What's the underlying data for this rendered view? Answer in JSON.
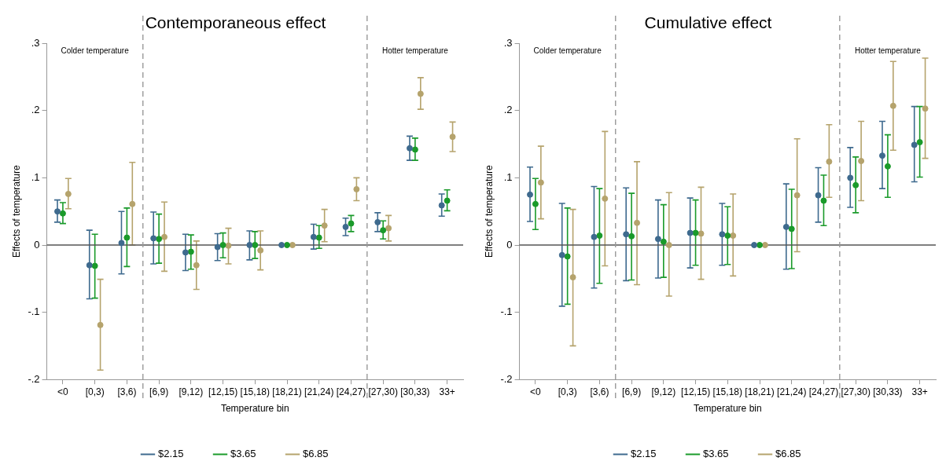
{
  "chart_data": [
    {
      "type": "scatter",
      "title": "Contemporaneous effect",
      "xlabel": "Temperature bin",
      "ylabel": "Effects of temperature",
      "categories": [
        "<0",
        "[0,3)",
        "[3,6)",
        "[6,9)",
        "[9,12)",
        "[12,15)",
        "[15,18)",
        "[18,21)",
        "[21,24)",
        "[24,27)",
        "[27,30)",
        "[30,33)",
        "33+"
      ],
      "series": [
        {
          "name": "$2.15",
          "color": "#3e6a8e",
          "values": [
            0.05,
            -0.03,
            0.003,
            0.01,
            -0.011,
            -0.003,
            0,
            0,
            0.012,
            0.027,
            0.034,
            0.144,
            0.059
          ],
          "errors": [
            [
              0.034,
              0.067
            ],
            [
              -0.08,
              0.022
            ],
            [
              -0.043,
              0.05
            ],
            [
              -0.028,
              0.049
            ],
            [
              -0.038,
              0.016
            ],
            [
              -0.023,
              0.017
            ],
            [
              -0.022,
              0.021
            ],
            null,
            [
              -0.006,
              0.031
            ],
            [
              0.014,
              0.04
            ],
            [
              0.02,
              0.048
            ],
            [
              0.126,
              0.162
            ],
            [
              0.043,
              0.076
            ]
          ]
        },
        {
          "name": "$3.65",
          "color": "#1a9a2a",
          "values": [
            0.047,
            -0.031,
            0.011,
            0.009,
            -0.01,
            0,
            0,
            0,
            0.011,
            0.032,
            0.022,
            0.142,
            0.066
          ],
          "errors": [
            [
              0.032,
              0.063
            ],
            [
              -0.079,
              0.016
            ],
            [
              -0.032,
              0.055
            ],
            [
              -0.027,
              0.046
            ],
            [
              -0.036,
              0.015
            ],
            [
              -0.019,
              0.018
            ],
            [
              -0.02,
              0.02
            ],
            null,
            [
              -0.005,
              0.029
            ],
            [
              0.02,
              0.044
            ],
            [
              0.009,
              0.036
            ],
            [
              0.126,
              0.159
            ],
            [
              0.051,
              0.082
            ]
          ]
        },
        {
          "name": "$6.85",
          "color": "#b5a36c",
          "values": [
            0.076,
            -0.119,
            0.061,
            0.012,
            -0.03,
            -0.001,
            -0.008,
            0,
            0.029,
            0.083,
            0.025,
            0.225,
            0.161
          ],
          "errors": [
            [
              0.054,
              0.099
            ],
            [
              -0.186,
              -0.051
            ],
            [
              0,
              0.123
            ],
            [
              -0.039,
              0.064
            ],
            [
              -0.066,
              0.006
            ],
            [
              -0.028,
              0.025
            ],
            [
              -0.037,
              0.021
            ],
            null,
            [
              0.005,
              0.053
            ],
            [
              0.066,
              0.1
            ],
            [
              0.006,
              0.044
            ],
            [
              0.202,
              0.249
            ],
            [
              0.139,
              0.183
            ]
          ]
        }
      ],
      "ylim": [
        -0.2,
        0.3
      ],
      "yticks": [
        {
          "value": -0.2,
          "label": "-.2"
        },
        {
          "value": -0.1,
          "label": "-.1"
        },
        0,
        {
          "value": 0.1,
          "label": ".1"
        },
        {
          "value": 0.2,
          "label": ".2"
        },
        {
          "value": 0.3,
          "label": ".3"
        }
      ],
      "ref_lines": [
        {
          "axis": "y",
          "value": 0,
          "color": "#555555",
          "line_style": "solid"
        }
      ],
      "annotations": [
        "Colder temperature",
        "Hotter temperature"
      ],
      "marker": "circle",
      "grid": false,
      "legend": "bottom"
    },
    {
      "type": "scatter",
      "title": "Cumulative effect",
      "xlabel": "Temperature bin",
      "ylabel": "Effects of temperature",
      "categories": [
        "<0",
        "[0,3)",
        "[3,6)",
        "[6,9)",
        "[9,12)",
        "[12,15)",
        "[15,18)",
        "[18,21)",
        "[21,24)",
        "[24,27)",
        "[27,30)",
        "[30,33)",
        "33+"
      ],
      "series": [
        {
          "name": "$2.15",
          "color": "#3e6a8e",
          "values": [
            0.075,
            -0.015,
            0.012,
            0.016,
            0.009,
            0.018,
            0.016,
            0,
            0.027,
            0.074,
            0.1,
            0.133,
            0.149
          ],
          "errors": [
            [
              0.035,
              0.116
            ],
            [
              -0.091,
              0.062
            ],
            [
              -0.064,
              0.087
            ],
            [
              -0.053,
              0.085
            ],
            [
              -0.049,
              0.067
            ],
            [
              -0.034,
              0.07
            ],
            [
              -0.03,
              0.062
            ],
            null,
            [
              -0.036,
              0.091
            ],
            [
              0.034,
              0.115
            ],
            [
              0.056,
              0.145
            ],
            [
              0.084,
              0.184
            ],
            [
              0.094,
              0.206
            ]
          ]
        },
        {
          "name": "$3.65",
          "color": "#1a9a2a",
          "values": [
            0.061,
            -0.017,
            0.014,
            0.013,
            0.005,
            0.018,
            0.014,
            0,
            0.024,
            0.066,
            0.089,
            0.117,
            0.153
          ],
          "errors": [
            [
              0.023,
              0.099
            ],
            [
              -0.088,
              0.055
            ],
            [
              -0.057,
              0.084
            ],
            [
              -0.052,
              0.077
            ],
            [
              -0.048,
              0.06
            ],
            [
              -0.03,
              0.067
            ],
            [
              -0.029,
              0.057
            ],
            null,
            [
              -0.035,
              0.083
            ],
            [
              0.029,
              0.104
            ],
            [
              0.048,
              0.131
            ],
            [
              0.071,
              0.164
            ],
            [
              0.101,
              0.206
            ]
          ]
        },
        {
          "name": "$6.85",
          "color": "#b5a36c",
          "values": [
            0.093,
            -0.048,
            0.069,
            0.033,
            0,
            0.017,
            0.014,
            0,
            0.074,
            0.124,
            0.125,
            0.207,
            0.203
          ],
          "errors": [
            [
              0.039,
              0.147
            ],
            [
              -0.15,
              0.053
            ],
            [
              -0.031,
              0.169
            ],
            [
              -0.059,
              0.124
            ],
            [
              -0.076,
              0.078
            ],
            [
              -0.051,
              0.086
            ],
            [
              -0.046,
              0.076
            ],
            null,
            [
              -0.01,
              0.158
            ],
            [
              0.071,
              0.179
            ],
            [
              0.066,
              0.184
            ],
            [
              0.141,
              0.273
            ],
            [
              0.129,
              0.278
            ]
          ]
        }
      ],
      "ylim": [
        -0.2,
        0.3
      ],
      "yticks": [
        {
          "value": -0.2,
          "label": "-.2"
        },
        {
          "value": -0.1,
          "label": "-.1"
        },
        0,
        {
          "value": 0.1,
          "label": ".1"
        },
        {
          "value": 0.2,
          "label": ".2"
        },
        {
          "value": 0.3,
          "label": ".3"
        }
      ],
      "ref_lines": [
        {
          "axis": "y",
          "value": 0,
          "color": "#555555",
          "line_style": "solid"
        }
      ],
      "annotations": [
        "Colder temperature",
        "Hotter temperature"
      ],
      "marker": "circle",
      "grid": false,
      "legend": "bottom"
    }
  ]
}
